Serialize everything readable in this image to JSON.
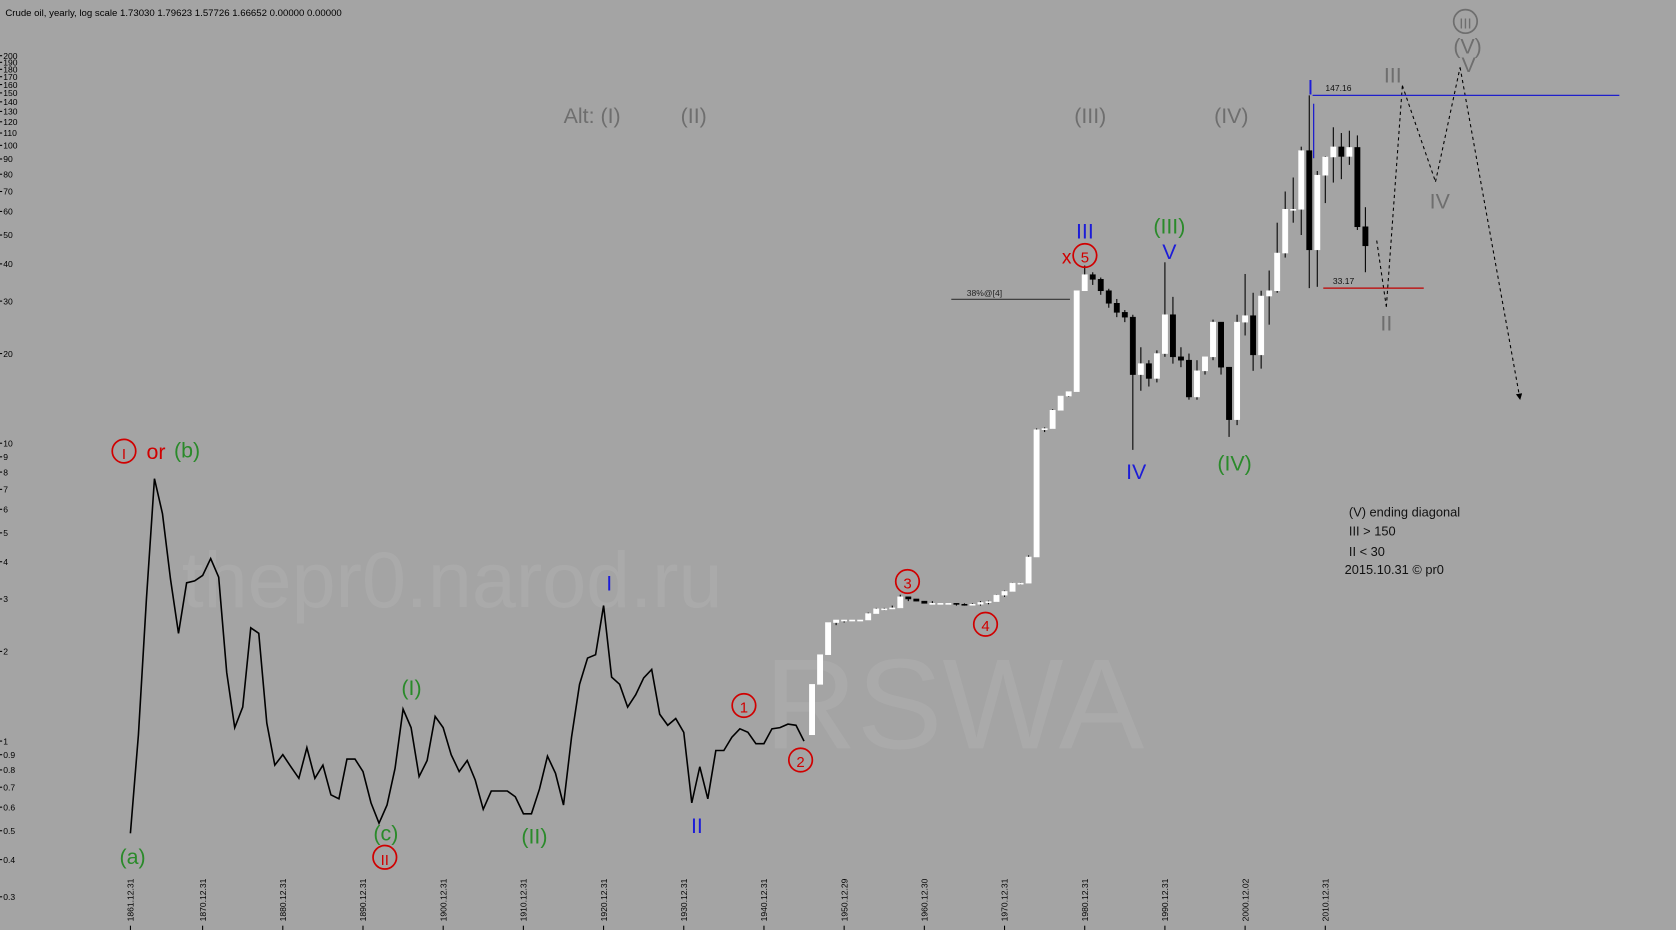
{
  "chart_data": {
    "type": "candlestick",
    "title": "Crude oil, yearly, log scale 1.73030 1.79623 1.57726 1.66652 0.00000 0.00000",
    "log_scale": true,
    "grid": false,
    "background": "#a4a4a4",
    "ylim": [
      0.24,
      300
    ],
    "yticks": [
      0.3,
      0.4,
      0.5,
      0.6,
      0.7,
      0.8,
      0.9,
      1,
      2,
      3,
      4,
      5,
      6,
      7,
      8,
      9,
      10,
      20,
      30,
      40,
      50,
      60,
      70,
      80,
      90,
      100,
      110,
      120,
      130,
      140,
      150,
      160,
      170,
      180,
      190,
      200
    ],
    "xlim": [
      1847,
      2054
    ],
    "xticks": [
      {
        "value": 1861,
        "label": "1861.12.31"
      },
      {
        "value": 1870,
        "label": "1870.12.31"
      },
      {
        "value": 1880,
        "label": "1880.12.31"
      },
      {
        "value": 1890,
        "label": "1890.12.31"
      },
      {
        "value": 1900,
        "label": "1900.12.31"
      },
      {
        "value": 1910,
        "label": "1910.12.31"
      },
      {
        "value": 1920,
        "label": "1920.12.31"
      },
      {
        "value": 1930,
        "label": "1930.12.31"
      },
      {
        "value": 1940,
        "label": "1940.12.31"
      },
      {
        "value": 1950,
        "label": "1950.12.29"
      },
      {
        "value": 1960,
        "label": "1960.12.30"
      },
      {
        "value": 1970,
        "label": "1970.12.31"
      },
      {
        "value": 1980,
        "label": "1980.12.31"
      },
      {
        "value": 1990,
        "label": "1990.12.31"
      },
      {
        "value": 2000,
        "label": "2000.12.02"
      },
      {
        "value": 2010,
        "label": "2010.12.31"
      }
    ],
    "series": [
      {
        "type": "line",
        "color": "#000000",
        "x": [
          1861,
          1862,
          1863,
          1864,
          1865,
          1866,
          1867,
          1868,
          1869,
          1870,
          1871,
          1872,
          1873,
          1874,
          1875,
          1876,
          1877,
          1878,
          1879,
          1880,
          1881,
          1882,
          1883,
          1884,
          1885,
          1886,
          1887,
          1888,
          1889,
          1890,
          1891,
          1892,
          1893,
          1894,
          1895,
          1896,
          1897,
          1898,
          1899,
          1900,
          1901,
          1902,
          1903,
          1904,
          1905,
          1906,
          1907,
          1908,
          1909,
          1910,
          1911,
          1912,
          1913,
          1914,
          1915,
          1916,
          1917,
          1918,
          1919,
          1920,
          1921,
          1922,
          1923,
          1924,
          1925,
          1926,
          1927,
          1928,
          1929,
          1930,
          1931,
          1932,
          1933,
          1934,
          1935,
          1936,
          1937,
          1938,
          1939,
          1940,
          1941,
          1942,
          1943,
          1944,
          1945
        ],
        "values": [
          0.49,
          1.05,
          3.0,
          7.6,
          5.8,
          3.5,
          2.3,
          3.4,
          3.45,
          3.6,
          4.1,
          3.55,
          1.7,
          1.11,
          1.3,
          2.4,
          2.3,
          1.15,
          0.83,
          0.9,
          0.82,
          0.75,
          0.95,
          0.75,
          0.83,
          0.66,
          0.64,
          0.87,
          0.87,
          0.79,
          0.62,
          0.53,
          0.61,
          0.81,
          1.28,
          1.11,
          0.76,
          0.86,
          1.21,
          1.11,
          0.9,
          0.79,
          0.86,
          0.74,
          0.59,
          0.68,
          0.68,
          0.68,
          0.65,
          0.57,
          0.57,
          0.69,
          0.89,
          0.78,
          0.61,
          1.03,
          1.55,
          1.9,
          1.95,
          2.85,
          1.64,
          1.55,
          1.3,
          1.43,
          1.63,
          1.74,
          1.23,
          1.13,
          1.19,
          1.07,
          0.62,
          0.82,
          0.64,
          0.93,
          0.93,
          1.03,
          1.1,
          1.07,
          0.98,
          0.98,
          1.1,
          1.11,
          1.14,
          1.13,
          1.0
        ]
      },
      {
        "type": "candlestick",
        "up_color": "#ffffff",
        "down_color": "#000000",
        "x": [
          1946,
          1947,
          1948,
          1949,
          1950,
          1951,
          1952,
          1953,
          1954,
          1955,
          1956,
          1957,
          1958,
          1959,
          1960,
          1961,
          1962,
          1963,
          1964,
          1965,
          1966,
          1967,
          1968,
          1969,
          1970,
          1971,
          1972,
          1973,
          1974,
          1975,
          1976,
          1977,
          1978,
          1979,
          1980,
          1981,
          1982,
          1983,
          1984,
          1985,
          1986,
          1987,
          1988,
          1989,
          1990,
          1991,
          1992,
          1993,
          1994,
          1995,
          1996,
          1997,
          1998,
          1999,
          2000,
          2001,
          2002,
          2003,
          2004,
          2005,
          2006,
          2007,
          2008,
          2009,
          2010,
          2011,
          2012,
          2013,
          2014,
          2015
        ],
        "open": [
          1.05,
          1.55,
          1.95,
          2.5,
          2.55,
          2.55,
          2.55,
          2.55,
          2.68,
          2.78,
          2.78,
          2.8,
          3.05,
          3.0,
          2.95,
          2.9,
          2.9,
          2.9,
          2.9,
          2.88,
          2.86,
          2.88,
          2.92,
          2.94,
          3.09,
          3.18,
          3.39,
          3.39,
          4.15,
          11.1,
          11.2,
          12.9,
          14.4,
          14.9,
          32.5,
          36.8,
          35.5,
          32.5,
          29.5,
          27.5,
          26.5,
          17,
          18.5,
          16.5,
          20,
          27,
          19.5,
          19,
          14.3,
          17.5,
          19.5,
          25.5,
          18,
          12,
          25.5,
          26.8,
          19.8,
          31.2,
          32.5,
          43.5,
          61,
          61,
          96,
          44.6,
          79.4,
          91.4,
          98.8,
          91.8,
          98.4,
          53.3
        ],
        "high": [
          1.55,
          1.95,
          2.5,
          2.55,
          2.55,
          2.55,
          2.55,
          2.7,
          2.8,
          2.8,
          2.85,
          3.1,
          3.05,
          3.0,
          2.95,
          2.95,
          2.9,
          2.9,
          2.9,
          2.9,
          2.9,
          2.95,
          2.96,
          3.1,
          3.2,
          3.4,
          3.4,
          4.2,
          11.2,
          11.3,
          13.0,
          14.4,
          14.9,
          32.5,
          39.5,
          37.5,
          36,
          33,
          30.5,
          28,
          27,
          21,
          19,
          20.5,
          40.5,
          31,
          21,
          20,
          19,
          19.5,
          26,
          25.5,
          18,
          27,
          37,
          32,
          32.5,
          38,
          55,
          70,
          78,
          99,
          147.16,
          82,
          92,
          115,
          110,
          112,
          108,
          62
        ],
        "low": [
          1.05,
          1.55,
          1.95,
          2.45,
          2.5,
          2.55,
          2.55,
          2.55,
          2.68,
          2.75,
          2.78,
          2.8,
          2.95,
          2.95,
          2.9,
          2.9,
          2.9,
          2.88,
          2.85,
          2.85,
          2.86,
          2.85,
          2.88,
          2.94,
          3.05,
          3.18,
          3.35,
          3.39,
          4.15,
          10.9,
          11.2,
          12.9,
          14.3,
          14.9,
          32.5,
          34,
          31.5,
          28.5,
          26.5,
          25.5,
          9.5,
          15,
          15.5,
          16,
          19.5,
          18.5,
          18,
          14,
          14,
          17,
          19,
          17,
          10.5,
          11.5,
          23,
          17.5,
          17.8,
          25,
          32,
          42,
          55,
          50,
          33.17,
          33.5,
          64,
          75,
          77,
          86,
          52,
          37.5
        ],
        "close": [
          1.55,
          1.95,
          2.5,
          2.55,
          2.55,
          2.55,
          2.55,
          2.68,
          2.78,
          2.78,
          2.8,
          3.05,
          3.0,
          2.95,
          2.9,
          2.9,
          2.9,
          2.9,
          2.88,
          2.86,
          2.88,
          2.92,
          2.94,
          3.09,
          3.18,
          3.39,
          3.39,
          4.15,
          11.1,
          11.2,
          12.9,
          14.4,
          14.9,
          32.5,
          36.8,
          35.5,
          32.5,
          29.5,
          27.5,
          26.5,
          17,
          18.5,
          16.5,
          20,
          27,
          19.5,
          19,
          14.3,
          17.5,
          19.5,
          25.5,
          18,
          12,
          25.5,
          26.8,
          19.8,
          31.2,
          32.5,
          43.5,
          61,
          61,
          96,
          44.6,
          79.4,
          91.4,
          98.8,
          91.8,
          98.4,
          53.3,
          46
        ]
      }
    ],
    "levels": [
      {
        "value": 147.16,
        "color": "#1f1fcc"
      },
      {
        "value": 33.17,
        "color": "#c00000"
      }
    ],
    "annotations": [
      {
        "text": "Alt: (I)",
        "color": "#6e6e6e"
      },
      {
        "text": "(II)",
        "color": "#6e6e6e"
      },
      {
        "text": "(III)",
        "color": "#6e6e6e"
      },
      {
        "text": "(IV)",
        "color": "#6e6e6e"
      },
      {
        "text": "I",
        "color": "#d00000",
        "circled": true
      },
      {
        "text": "or",
        "color": "#d00000"
      },
      {
        "text": "(b)",
        "color": "#2a8a2a"
      },
      {
        "text": "(a)",
        "color": "#2a8a2a"
      },
      {
        "text": "(c)",
        "color": "#2a8a2a"
      },
      {
        "text": "II",
        "color": "#d00000",
        "circled": true
      },
      {
        "text": "(I)",
        "color": "#2a8a2a"
      },
      {
        "text": "(II)",
        "color": "#2a8a2a"
      },
      {
        "text": "I",
        "color": "#1c1cd8"
      },
      {
        "text": "II",
        "color": "#1c1cd8"
      },
      {
        "text": "1",
        "color": "#d00000",
        "circled": true
      },
      {
        "text": "2",
        "color": "#d00000",
        "circled": true
      },
      {
        "text": "3",
        "color": "#d00000",
        "circled": true
      },
      {
        "text": "4",
        "color": "#d00000",
        "circled": true
      },
      {
        "text": "x",
        "color": "#d00000"
      },
      {
        "text": "5",
        "color": "#d00000",
        "circled": true
      },
      {
        "text": "III",
        "color": "#1c1cd8"
      },
      {
        "text": "(III)",
        "color": "#2a8a2a"
      },
      {
        "text": "V",
        "color": "#1c1cd8"
      },
      {
        "text": "IV",
        "color": "#1c1cd8"
      },
      {
        "text": "(IV)",
        "color": "#2a8a2a"
      },
      {
        "text": "I",
        "color": "#1c1cd8"
      },
      {
        "text": "III",
        "color": "#6e6e6e"
      },
      {
        "text": "IV",
        "color": "#6e6e6e"
      },
      {
        "text": "II",
        "color": "#6e6e6e"
      },
      {
        "text": "III",
        "color": "#6e6e6e",
        "circled": true
      },
      {
        "text": "(V)",
        "color": "#6e6e6e"
      },
      {
        "text": "V",
        "color": "#6e6e6e"
      },
      {
        "text": "38%@[4]",
        "color": "#222222"
      }
    ],
    "notes": [
      "(V) ending diagonal",
      "III > 150",
      "II < 30",
      "2015.10.31 © pr0"
    ],
    "watermarks": [
      "thepr0.narod.ru",
      "RSWA"
    ]
  }
}
